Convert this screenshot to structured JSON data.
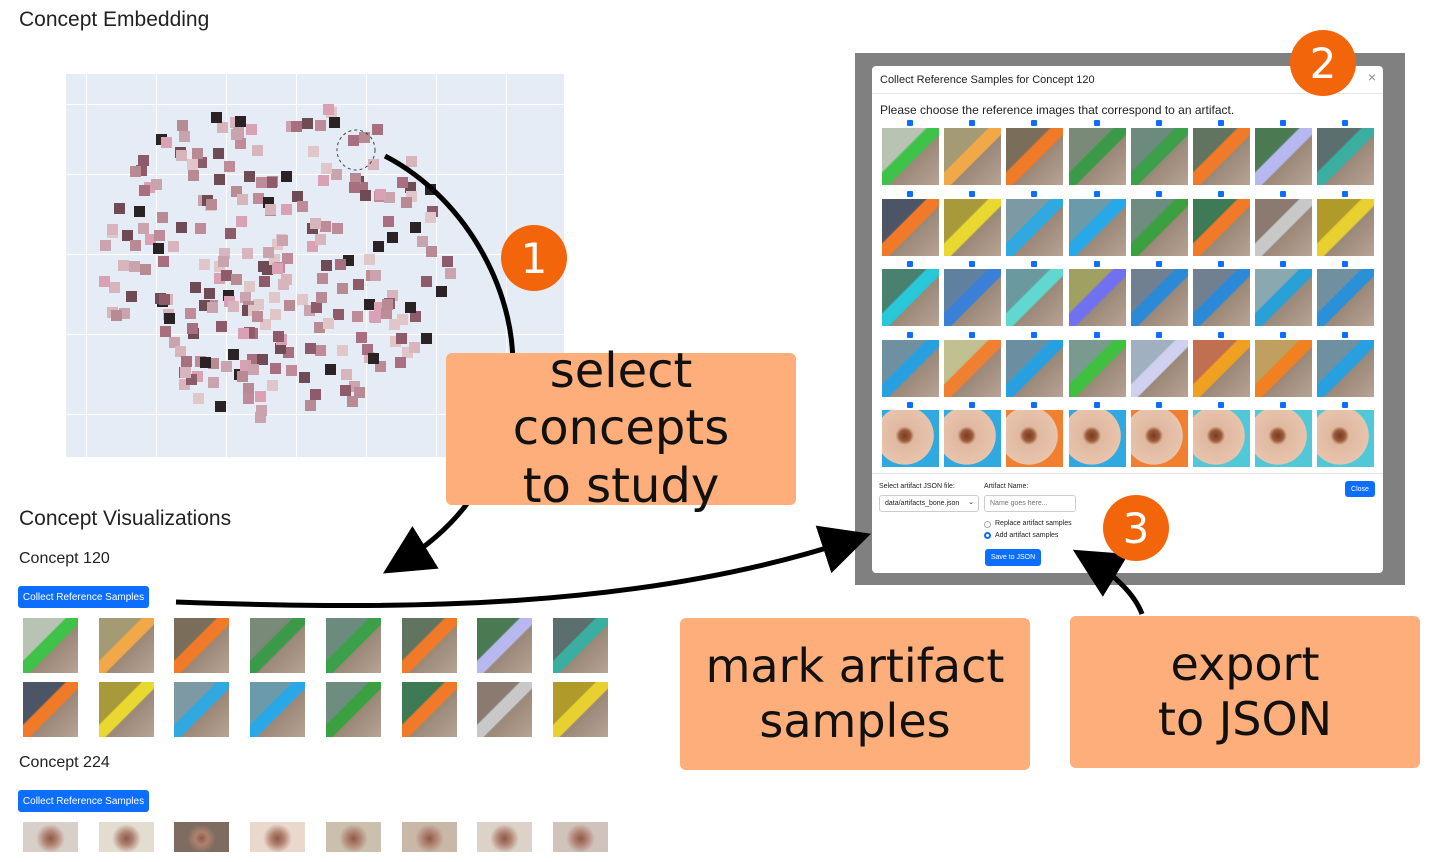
{
  "embedding": {
    "title": "Concept Embedding"
  },
  "visualizations": {
    "title": "Concept Visualizations",
    "concepts": [
      {
        "name": "Concept 120",
        "button_label": "Collect Reference Samples"
      },
      {
        "name": "Concept 224",
        "button_label": "Collect Reference Samples"
      }
    ]
  },
  "modal": {
    "title": "Collect Reference Samples for Concept 120",
    "prompt": "Please choose the reference images that correspond to an artifact.",
    "file_label": "Select artifact JSON file:",
    "file_value": "data/artifacts_bone.json",
    "artifact_name_label": "Artifact Name:",
    "artifact_name_placeholder": "Name goes here...",
    "radio_replace": "Replace artifact samples",
    "radio_add": "Add artifact samples",
    "save_label": "Save to JSON",
    "close_label": "Close",
    "close_icon": "×"
  },
  "callouts": {
    "select_line1": "select concepts",
    "select_line2": "to study",
    "mark_line1": "mark artifact",
    "mark_line2": "samples",
    "export_line1": "export",
    "export_line2": "to JSON"
  },
  "badges": {
    "one": "1",
    "two": "2",
    "three": "3"
  },
  "colors": {
    "primary": "#0d6efd",
    "callout": "#fdae7a",
    "badge": "#f2650a",
    "plot_bg": "#e5ecf6"
  }
}
